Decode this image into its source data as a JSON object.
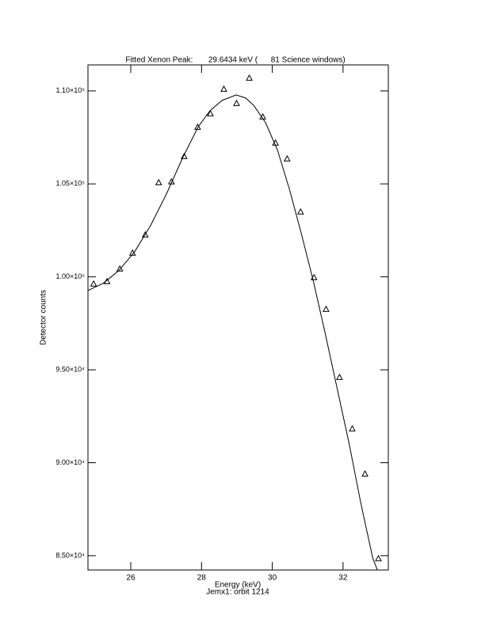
{
  "chart_data": {
    "type": "scatter",
    "title": "Fitted Xenon Peak:       29.6434 keV (      81 Science windows)",
    "x_label": "Energy (keV)",
    "x_label_2": "Jemx1: orbit 1214",
    "y_label": "Detector counts",
    "xlim": [
      24.79,
      33.28
    ],
    "ylim": [
      84230,
      111400
    ],
    "xticks": [
      26,
      28,
      30,
      32
    ],
    "yticks": [
      {
        "value": 85000,
        "label": "8.50×10⁴"
      },
      {
        "value": 90000,
        "label": "9.00×10⁴"
      },
      {
        "value": 95000,
        "label": "9.50×10⁴"
      },
      {
        "value": 100000,
        "label": "1.00×10⁵"
      },
      {
        "value": 105000,
        "label": "1.05×10⁵"
      },
      {
        "value": 110000,
        "label": "1.10×10⁵"
      }
    ],
    "series": [
      {
        "mode": "markers",
        "marker": "triangle",
        "color": "#000000",
        "x": [
          24.95,
          25.33,
          25.69,
          26.05,
          26.41,
          26.79,
          27.15,
          27.51,
          27.89,
          28.25,
          28.63,
          28.99,
          29.35,
          29.73,
          30.09,
          30.42,
          30.8,
          31.18,
          31.52,
          31.9,
          32.26,
          32.62,
          33.0
        ],
        "values": [
          99609,
          99736,
          100417,
          101269,
          102249,
          105060,
          105102,
          106465,
          108041,
          108765,
          110085,
          109319,
          110681,
          108595,
          107189,
          106337,
          103484,
          99949,
          98245,
          94582,
          91814,
          89387,
          84830
        ]
      },
      {
        "mode": "line",
        "color": "#000000",
        "x": [
          24.79,
          25.22,
          25.66,
          26.11,
          26.56,
          27.01,
          27.46,
          27.91,
          28.24,
          28.58,
          28.98,
          29.25,
          29.47,
          29.81,
          30.15,
          30.49,
          30.82,
          31.16,
          31.49,
          31.83,
          32.17,
          32.5,
          32.84,
          32.97
        ],
        "values": [
          99267,
          99651,
          100332,
          101354,
          102760,
          104464,
          106380,
          108083,
          108935,
          109489,
          109787,
          109617,
          109233,
          108296,
          106805,
          104676,
          102334,
          99778,
          97010,
          94029,
          91048,
          87853,
          84872,
          84233
        ]
      }
    ]
  }
}
